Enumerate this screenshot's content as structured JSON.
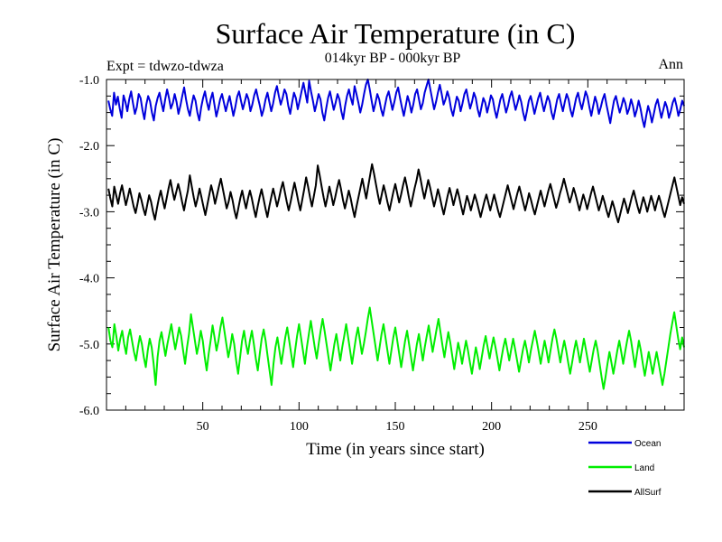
{
  "chart_data": {
    "type": "line",
    "title": "Surface Air Temperature (in C)",
    "subtitle": "014kyr BP - 000kyr BP",
    "left_label": "Expt = tdwzo-tdwza",
    "right_label": "Ann",
    "xlabel": "Time (in years since start)",
    "ylabel": "Surface Air Temperature (in C)",
    "xlim": [
      0,
      300
    ],
    "ylim": [
      -6.0,
      -1.0
    ],
    "x_ticks": [
      50,
      100,
      150,
      200,
      250
    ],
    "y_ticks": [
      "-1.0",
      "-2.0",
      "-3.0",
      "-4.0",
      "-5.0",
      "-6.0"
    ],
    "legend_placement": "bottom-right",
    "series": [
      {
        "name": "Ocean",
        "color": "#0000dd",
        "values": [
          -1.32,
          -1.45,
          -1.55,
          -1.2,
          -1.38,
          -1.26,
          -1.44,
          -1.58,
          -1.24,
          -1.34,
          -1.48,
          -1.3,
          -1.18,
          -1.36,
          -1.52,
          -1.42,
          -1.22,
          -1.28,
          -1.46,
          -1.6,
          -1.38,
          -1.25,
          -1.33,
          -1.5,
          -1.62,
          -1.4,
          -1.28,
          -1.2,
          -1.35,
          -1.48,
          -1.3,
          -1.15,
          -1.28,
          -1.44,
          -1.36,
          -1.22,
          -1.34,
          -1.52,
          -1.4,
          -1.25,
          -1.12,
          -1.3,
          -1.45,
          -1.55,
          -1.38,
          -1.24,
          -1.32,
          -1.5,
          -1.62,
          -1.42,
          -1.28,
          -1.18,
          -1.34,
          -1.46,
          -1.3,
          -1.2,
          -1.38,
          -1.56,
          -1.44,
          -1.3,
          -1.22,
          -1.35,
          -1.48,
          -1.36,
          -1.25,
          -1.4,
          -1.55,
          -1.42,
          -1.26,
          -1.18,
          -1.32,
          -1.45,
          -1.34,
          -1.22,
          -1.3,
          -1.48,
          -1.38,
          -1.24,
          -1.15,
          -1.28,
          -1.4,
          -1.55,
          -1.45,
          -1.3,
          -1.2,
          -1.34,
          -1.48,
          -1.36,
          -1.2,
          -1.1,
          -1.25,
          -1.38,
          -1.28,
          -1.15,
          -1.22,
          -1.4,
          -1.52,
          -1.35,
          -1.2,
          -1.28,
          -1.45,
          -1.32,
          -1.18,
          -1.05,
          -1.2,
          -1.35,
          -1.02,
          -1.18,
          -1.32,
          -1.48,
          -1.36,
          -1.22,
          -1.3,
          -1.5,
          -1.62,
          -1.44,
          -1.28,
          -1.18,
          -1.32,
          -1.46,
          -1.35,
          -1.22,
          -1.3,
          -1.48,
          -1.6,
          -1.4,
          -1.25,
          -1.15,
          -1.28,
          -1.38,
          -1.1,
          -1.22,
          -1.35,
          -1.5,
          -1.38,
          -1.22,
          -1.08,
          -1.0,
          -1.15,
          -1.32,
          -1.48,
          -1.36,
          -1.22,
          -1.3,
          -1.45,
          -1.55,
          -1.4,
          -1.26,
          -1.18,
          -1.32,
          -1.46,
          -1.34,
          -1.2,
          -1.12,
          -1.28,
          -1.42,
          -1.55,
          -1.4,
          -1.25,
          -1.35,
          -1.5,
          -1.38,
          -1.22,
          -1.15,
          -1.3,
          -1.45,
          -1.36,
          -1.2,
          -1.1,
          -1.0,
          -1.15,
          -1.3,
          -1.45,
          -1.34,
          -1.2,
          -1.08,
          -1.22,
          -1.38,
          -1.3,
          -1.18,
          -1.28,
          -1.45,
          -1.55,
          -1.4,
          -1.26,
          -1.32,
          -1.48,
          -1.36,
          -1.22,
          -1.15,
          -1.3,
          -1.44,
          -1.34,
          -1.2,
          -1.28,
          -1.45,
          -1.56,
          -1.42,
          -1.28,
          -1.35,
          -1.5,
          -1.38,
          -1.24,
          -1.3,
          -1.46,
          -1.58,
          -1.44,
          -1.3,
          -1.22,
          -1.36,
          -1.5,
          -1.4,
          -1.26,
          -1.18,
          -1.32,
          -1.46,
          -1.36,
          -1.24,
          -1.34,
          -1.5,
          -1.62,
          -1.48,
          -1.32,
          -1.25,
          -1.38,
          -1.52,
          -1.4,
          -1.28,
          -1.2,
          -1.35,
          -1.48,
          -1.36,
          -1.25,
          -1.33,
          -1.5,
          -1.6,
          -1.45,
          -1.3,
          -1.22,
          -1.36,
          -1.48,
          -1.34,
          -1.22,
          -1.3,
          -1.46,
          -1.56,
          -1.42,
          -1.28,
          -1.2,
          -1.34,
          -1.45,
          -1.32,
          -1.18,
          -1.26,
          -1.42,
          -1.55,
          -1.4,
          -1.26,
          -1.36,
          -1.52,
          -1.42,
          -1.3,
          -1.22,
          -1.38,
          -1.52,
          -1.66,
          -1.48,
          -1.32,
          -1.25,
          -1.38,
          -1.5,
          -1.4,
          -1.28,
          -1.36,
          -1.52,
          -1.44,
          -1.3,
          -1.4,
          -1.56,
          -1.46,
          -1.32,
          -1.44,
          -1.6,
          -1.72,
          -1.55,
          -1.4,
          -1.5,
          -1.65,
          -1.52,
          -1.38,
          -1.3,
          -1.44,
          -1.58,
          -1.46,
          -1.34,
          -1.42,
          -1.58,
          -1.48,
          -1.35,
          -1.28,
          -1.4,
          -1.55,
          -1.45,
          -1.32,
          -1.4
        ]
      },
      {
        "name": "Land",
        "color": "#00ee00",
        "values": [
          -4.75,
          -4.95,
          -5.05,
          -4.7,
          -4.88,
          -5.1,
          -4.92,
          -4.8,
          -5.0,
          -5.15,
          -4.9,
          -4.78,
          -4.95,
          -5.12,
          -5.25,
          -5.05,
          -4.88,
          -5.0,
          -5.2,
          -5.35,
          -5.1,
          -4.92,
          -5.05,
          -5.3,
          -5.62,
          -5.2,
          -4.95,
          -4.82,
          -5.0,
          -5.18,
          -5.0,
          -4.85,
          -4.7,
          -4.9,
          -5.08,
          -4.92,
          -4.75,
          -4.88,
          -5.1,
          -5.3,
          -5.05,
          -4.85,
          -4.55,
          -4.75,
          -4.95,
          -5.15,
          -5.0,
          -4.8,
          -4.95,
          -5.2,
          -5.4,
          -5.15,
          -4.95,
          -4.72,
          -4.9,
          -5.1,
          -4.95,
          -4.75,
          -4.6,
          -4.8,
          -5.0,
          -5.2,
          -5.05,
          -4.85,
          -5.0,
          -5.25,
          -5.45,
          -5.2,
          -4.95,
          -4.8,
          -5.0,
          -5.15,
          -4.95,
          -4.8,
          -5.0,
          -5.22,
          -5.4,
          -5.15,
          -4.92,
          -4.78,
          -4.95,
          -5.18,
          -5.4,
          -5.62,
          -5.3,
          -5.05,
          -4.9,
          -5.1,
          -5.3,
          -5.1,
          -4.9,
          -4.75,
          -4.95,
          -5.15,
          -5.35,
          -5.1,
          -4.88,
          -4.7,
          -4.9,
          -5.1,
          -5.3,
          -5.05,
          -4.85,
          -4.65,
          -4.85,
          -5.05,
          -5.22,
          -5.0,
          -4.8,
          -4.62,
          -4.8,
          -5.0,
          -5.2,
          -5.4,
          -5.2,
          -5.0,
          -4.85,
          -5.05,
          -5.25,
          -5.05,
          -4.88,
          -4.7,
          -4.9,
          -5.1,
          -5.3,
          -5.1,
          -4.9,
          -4.75,
          -4.95,
          -5.15,
          -5.0,
          -4.82,
          -4.62,
          -4.45,
          -4.65,
          -4.85,
          -5.05,
          -5.25,
          -5.05,
          -4.85,
          -4.7,
          -4.9,
          -5.1,
          -5.3,
          -5.1,
          -4.9,
          -4.75,
          -4.95,
          -5.15,
          -5.35,
          -5.15,
          -4.95,
          -4.8,
          -5.0,
          -5.2,
          -5.4,
          -5.2,
          -5.0,
          -4.85,
          -5.05,
          -5.25,
          -5.05,
          -4.88,
          -4.72,
          -4.92,
          -5.12,
          -4.95,
          -4.78,
          -4.62,
          -4.82,
          -5.02,
          -5.2,
          -5.0,
          -4.82,
          -4.98,
          -5.18,
          -5.38,
          -5.18,
          -4.98,
          -5.12,
          -5.3,
          -5.12,
          -4.95,
          -5.1,
          -5.28,
          -5.45,
          -5.25,
          -5.05,
          -5.2,
          -5.38,
          -5.2,
          -5.02,
          -4.88,
          -5.05,
          -5.22,
          -5.05,
          -4.9,
          -5.05,
          -5.22,
          -5.4,
          -5.22,
          -5.05,
          -4.92,
          -5.08,
          -5.25,
          -5.08,
          -4.92,
          -5.08,
          -5.25,
          -5.42,
          -5.25,
          -5.08,
          -4.95,
          -5.1,
          -5.28,
          -5.1,
          -4.95,
          -4.8,
          -4.95,
          -5.12,
          -5.3,
          -5.12,
          -4.95,
          -5.1,
          -5.28,
          -5.1,
          -4.92,
          -4.78,
          -4.92,
          -5.1,
          -5.28,
          -5.1,
          -4.95,
          -5.1,
          -5.28,
          -5.45,
          -5.28,
          -5.1,
          -4.95,
          -5.1,
          -5.28,
          -5.1,
          -4.92,
          -5.08,
          -5.25,
          -5.42,
          -5.25,
          -5.08,
          -4.95,
          -5.1,
          -5.3,
          -5.5,
          -5.68,
          -5.5,
          -5.3,
          -5.12,
          -5.28,
          -5.45,
          -5.28,
          -5.1,
          -4.95,
          -5.12,
          -5.3,
          -5.12,
          -4.95,
          -4.8,
          -4.95,
          -5.15,
          -5.35,
          -5.15,
          -4.95,
          -5.1,
          -5.3,
          -5.48,
          -5.3,
          -5.12,
          -5.28,
          -5.45,
          -5.28,
          -5.12,
          -5.28,
          -5.45,
          -5.62,
          -5.45,
          -5.25,
          -5.05,
          -4.85,
          -4.68,
          -4.52,
          -4.72,
          -4.92,
          -5.08,
          -4.9,
          -5.05
        ]
      },
      {
        "name": "AllSurf",
        "color": "#000000",
        "values": [
          -2.65,
          -2.8,
          -2.92,
          -2.62,
          -2.75,
          -2.88,
          -2.72,
          -2.6,
          -2.75,
          -2.9,
          -2.78,
          -2.65,
          -2.78,
          -2.92,
          -3.02,
          -2.88,
          -2.72,
          -2.82,
          -2.95,
          -3.05,
          -2.9,
          -2.75,
          -2.85,
          -3.0,
          -3.12,
          -2.95,
          -2.8,
          -2.68,
          -2.82,
          -2.95,
          -2.8,
          -2.65,
          -2.52,
          -2.68,
          -2.82,
          -2.7,
          -2.58,
          -2.7,
          -2.85,
          -2.98,
          -2.82,
          -2.68,
          -2.45,
          -2.62,
          -2.78,
          -2.92,
          -2.8,
          -2.65,
          -2.78,
          -2.92,
          -3.05,
          -2.9,
          -2.75,
          -2.6,
          -2.72,
          -2.88,
          -2.75,
          -2.62,
          -2.5,
          -2.65,
          -2.8,
          -2.95,
          -2.85,
          -2.7,
          -2.82,
          -2.98,
          -3.1,
          -2.95,
          -2.8,
          -2.68,
          -2.82,
          -2.95,
          -2.8,
          -2.68,
          -2.8,
          -2.95,
          -3.08,
          -2.92,
          -2.78,
          -2.66,
          -2.8,
          -2.95,
          -3.08,
          -2.92,
          -2.78,
          -2.65,
          -2.78,
          -2.92,
          -2.8,
          -2.66,
          -2.55,
          -2.7,
          -2.85,
          -2.98,
          -2.85,
          -2.7,
          -2.56,
          -2.7,
          -2.85,
          -2.98,
          -2.82,
          -2.66,
          -2.48,
          -2.62,
          -2.78,
          -2.92,
          -2.76,
          -2.6,
          -2.3,
          -2.45,
          -2.62,
          -2.78,
          -2.92,
          -2.78,
          -2.62,
          -2.75,
          -2.9,
          -2.78,
          -2.64,
          -2.52,
          -2.66,
          -2.82,
          -2.95,
          -2.82,
          -2.68,
          -2.8,
          -2.95,
          -3.08,
          -2.92,
          -2.78,
          -2.64,
          -2.5,
          -2.65,
          -2.8,
          -2.62,
          -2.45,
          -2.28,
          -2.42,
          -2.58,
          -2.74,
          -2.88,
          -2.74,
          -2.6,
          -2.72,
          -2.86,
          -2.98,
          -2.84,
          -2.7,
          -2.58,
          -2.72,
          -2.86,
          -2.74,
          -2.6,
          -2.48,
          -2.62,
          -2.78,
          -2.92,
          -2.78,
          -2.64,
          -2.52,
          -2.36,
          -2.5,
          -2.66,
          -2.8,
          -2.66,
          -2.52,
          -2.64,
          -2.78,
          -2.92,
          -2.8,
          -2.66,
          -2.78,
          -2.92,
          -3.04,
          -2.9,
          -2.76,
          -2.64,
          -2.76,
          -2.9,
          -2.78,
          -2.66,
          -2.78,
          -2.92,
          -3.04,
          -2.9,
          -2.76,
          -2.86,
          -2.98,
          -2.86,
          -2.74,
          -2.84,
          -2.96,
          -3.08,
          -2.96,
          -2.84,
          -2.74,
          -2.86,
          -2.98,
          -2.86,
          -2.74,
          -2.86,
          -2.98,
          -3.08,
          -2.96,
          -2.84,
          -2.72,
          -2.6,
          -2.72,
          -2.84,
          -2.96,
          -2.84,
          -2.72,
          -2.62,
          -2.74,
          -2.86,
          -2.98,
          -2.86,
          -2.72,
          -2.82,
          -2.94,
          -3.04,
          -2.92,
          -2.8,
          -2.68,
          -2.8,
          -2.92,
          -2.8,
          -2.68,
          -2.58,
          -2.7,
          -2.82,
          -2.94,
          -2.84,
          -2.72,
          -2.62,
          -2.5,
          -2.62,
          -2.74,
          -2.86,
          -2.76,
          -2.64,
          -2.74,
          -2.86,
          -2.98,
          -2.86,
          -2.74,
          -2.84,
          -2.96,
          -2.84,
          -2.72,
          -2.62,
          -2.74,
          -2.86,
          -2.98,
          -2.88,
          -2.76,
          -2.86,
          -2.98,
          -3.08,
          -2.96,
          -2.84,
          -2.94,
          -3.06,
          -3.16,
          -3.04,
          -2.92,
          -2.8,
          -2.9,
          -3.02,
          -2.9,
          -2.78,
          -2.68,
          -2.8,
          -2.92,
          -3.02,
          -2.9,
          -2.78,
          -2.88,
          -3.0,
          -2.88,
          -2.76,
          -2.86,
          -2.98,
          -2.86,
          -2.76,
          -2.86,
          -2.98,
          -3.08,
          -2.96,
          -2.84,
          -2.72,
          -2.6,
          -2.48,
          -2.62,
          -2.76,
          -2.9,
          -2.78,
          -2.88
        ]
      }
    ]
  }
}
